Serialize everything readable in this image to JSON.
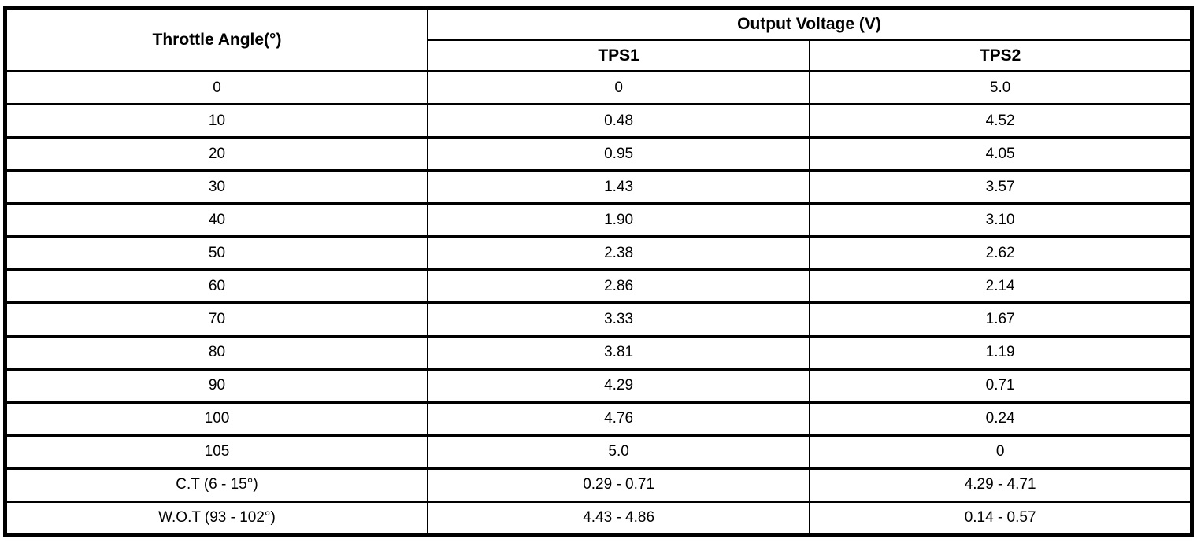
{
  "table": {
    "header": {
      "throttle_angle": "Throttle Angle(°)",
      "output_voltage": "Output Voltage (V)",
      "tps1": "TPS1",
      "tps2": "TPS2"
    },
    "rows": [
      {
        "angle": "0",
        "tps1": "0",
        "tps2": "5.0"
      },
      {
        "angle": "10",
        "tps1": "0.48",
        "tps2": "4.52"
      },
      {
        "angle": "20",
        "tps1": "0.95",
        "tps2": "4.05"
      },
      {
        "angle": "30",
        "tps1": "1.43",
        "tps2": "3.57"
      },
      {
        "angle": "40",
        "tps1": "1.90",
        "tps2": "3.10"
      },
      {
        "angle": "50",
        "tps1": "2.38",
        "tps2": "2.62"
      },
      {
        "angle": "60",
        "tps1": "2.86",
        "tps2": "2.14"
      },
      {
        "angle": "70",
        "tps1": "3.33",
        "tps2": "1.67"
      },
      {
        "angle": "80",
        "tps1": "3.81",
        "tps2": "1.19"
      },
      {
        "angle": "90",
        "tps1": "4.29",
        "tps2": "0.71"
      },
      {
        "angle": "100",
        "tps1": "4.76",
        "tps2": "0.24"
      },
      {
        "angle": "105",
        "tps1": "5.0",
        "tps2": "0"
      },
      {
        "angle": "C.T (6 - 15°)",
        "tps1": "0.29 - 0.71",
        "tps2": "4.29 - 4.71"
      },
      {
        "angle": "W.O.T (93 - 102°)",
        "tps1": "4.43 - 4.86",
        "tps2": "0.14 - 0.57"
      }
    ]
  }
}
